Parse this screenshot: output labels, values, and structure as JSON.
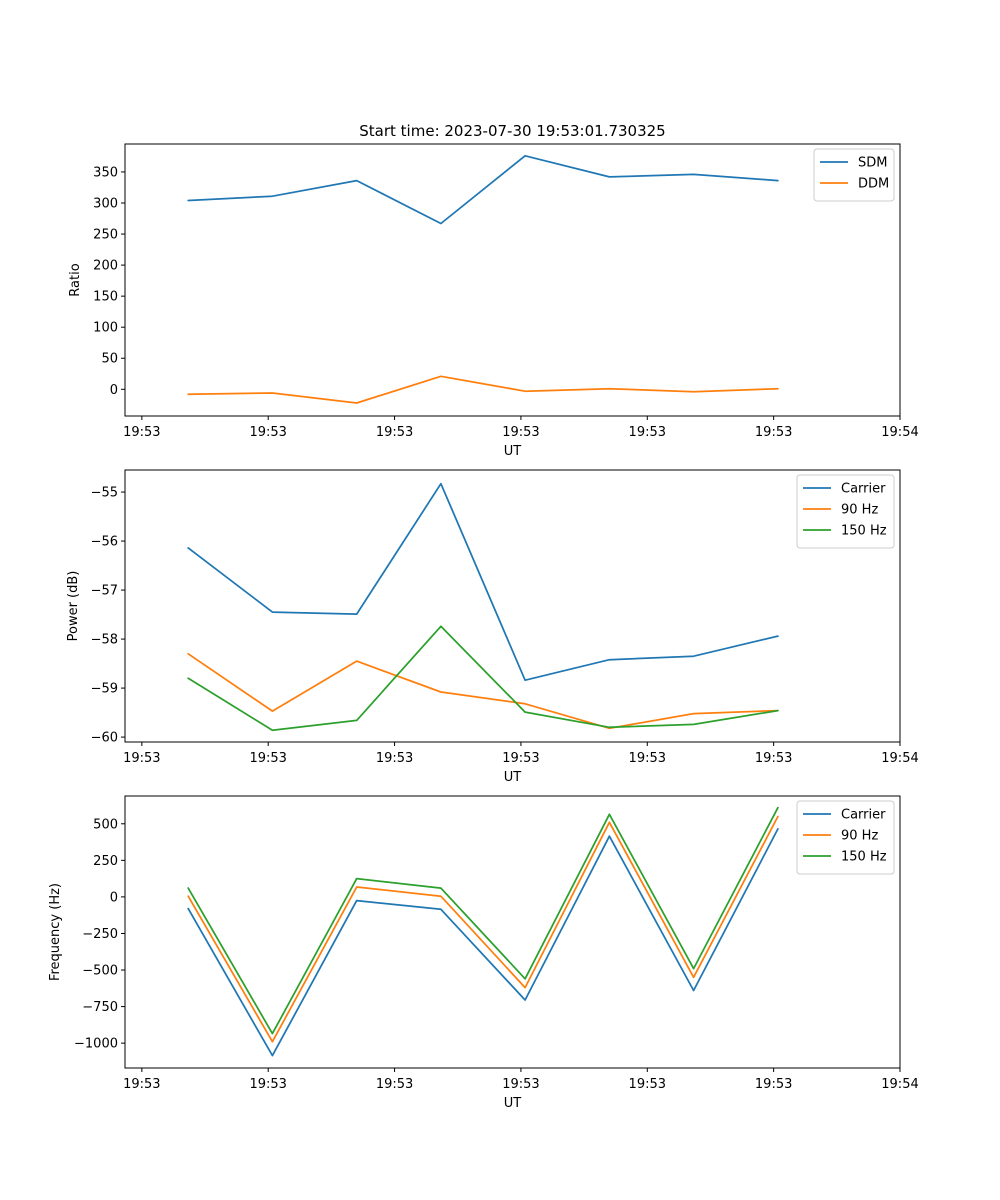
{
  "chart_data": [
    {
      "type": "line",
      "title": "Start time: 2023-07-30 19:53:01.730325",
      "xlabel": "UT",
      "ylabel": "Ratio",
      "x": [
        1,
        2,
        3,
        4,
        5,
        6,
        7,
        8
      ],
      "xlim": [
        0.25,
        9.45
      ],
      "xticks": [
        0.45,
        1.95,
        3.45,
        4.95,
        6.45,
        7.95,
        9.45
      ],
      "xtick_labels": [
        "19:53",
        "19:53",
        "19:53",
        "19:53",
        "19:53",
        "19:53",
        "19:54"
      ],
      "ylim": [
        -43,
        395
      ],
      "yticks": [
        0,
        50,
        100,
        150,
        200,
        250,
        300,
        350
      ],
      "ytick_labels": [
        "0",
        "50",
        "100",
        "150",
        "200",
        "250",
        "300",
        "350"
      ],
      "legend_position": "top-right",
      "series": [
        {
          "name": "SDM",
          "color": "#1f77b4",
          "values": [
            304,
            311,
            336,
            267,
            376,
            342,
            346,
            336
          ]
        },
        {
          "name": "DDM",
          "color": "#ff7f0e",
          "values": [
            -8,
            -6,
            -22,
            21,
            -3,
            1,
            -4,
            1
          ]
        }
      ]
    },
    {
      "type": "line",
      "title": "",
      "xlabel": "UT",
      "ylabel": "Power (dB)",
      "x": [
        1,
        2,
        3,
        4,
        5,
        6,
        7,
        8
      ],
      "xlim": [
        0.25,
        9.45
      ],
      "xticks": [
        0.45,
        1.95,
        3.45,
        4.95,
        6.45,
        7.95,
        9.45
      ],
      "xtick_labels": [
        "19:53",
        "19:53",
        "19:53",
        "19:53",
        "19:53",
        "19:53",
        "19:54"
      ],
      "ylim": [
        -60.1,
        -54.55
      ],
      "yticks": [
        -60,
        -59,
        -58,
        -57,
        -56,
        -55
      ],
      "ytick_labels": [
        "−60",
        "−59",
        "−58",
        "−57",
        "−56",
        "−55"
      ],
      "legend_position": "top-right",
      "series": [
        {
          "name": "Carrier",
          "color": "#1f77b4",
          "values": [
            -56.14,
            -57.45,
            -57.49,
            -54.83,
            -58.84,
            -58.42,
            -58.35,
            -57.94
          ]
        },
        {
          "name": "90 Hz",
          "color": "#ff7f0e",
          "values": [
            -58.3,
            -59.47,
            -58.45,
            -59.08,
            -59.32,
            -59.82,
            -59.52,
            -59.46
          ]
        },
        {
          "name": "150 Hz",
          "color": "#2ca02c",
          "values": [
            -58.8,
            -59.86,
            -59.66,
            -57.74,
            -59.49,
            -59.8,
            -59.74,
            -59.46
          ]
        }
      ]
    },
    {
      "type": "line",
      "title": "",
      "xlabel": "UT",
      "ylabel": "Frequency (Hz)",
      "x": [
        1,
        2,
        3,
        4,
        5,
        6,
        7,
        8
      ],
      "xlim": [
        0.25,
        9.45
      ],
      "xticks": [
        0.45,
        1.95,
        3.45,
        4.95,
        6.45,
        7.95,
        9.45
      ],
      "xtick_labels": [
        "19:53",
        "19:53",
        "19:53",
        "19:53",
        "19:53",
        "19:53",
        "19:54"
      ],
      "ylim": [
        -1170,
        690
      ],
      "yticks": [
        -1000,
        -750,
        -500,
        -250,
        0,
        250,
        500
      ],
      "ytick_labels": [
        "−1000",
        "−750",
        "−500",
        "−250",
        "0",
        "250",
        "500"
      ],
      "legend_position": "top-right",
      "series": [
        {
          "name": "Carrier",
          "color": "#1f77b4",
          "values": [
            -80,
            -1085,
            -25,
            -85,
            -705,
            415,
            -640,
            465
          ]
        },
        {
          "name": "90 Hz",
          "color": "#ff7f0e",
          "values": [
            5,
            -990,
            68,
            5,
            -620,
            510,
            -550,
            550
          ]
        },
        {
          "name": "150 Hz",
          "color": "#2ca02c",
          "values": [
            60,
            -935,
            125,
            60,
            -560,
            565,
            -490,
            610
          ]
        }
      ]
    }
  ]
}
